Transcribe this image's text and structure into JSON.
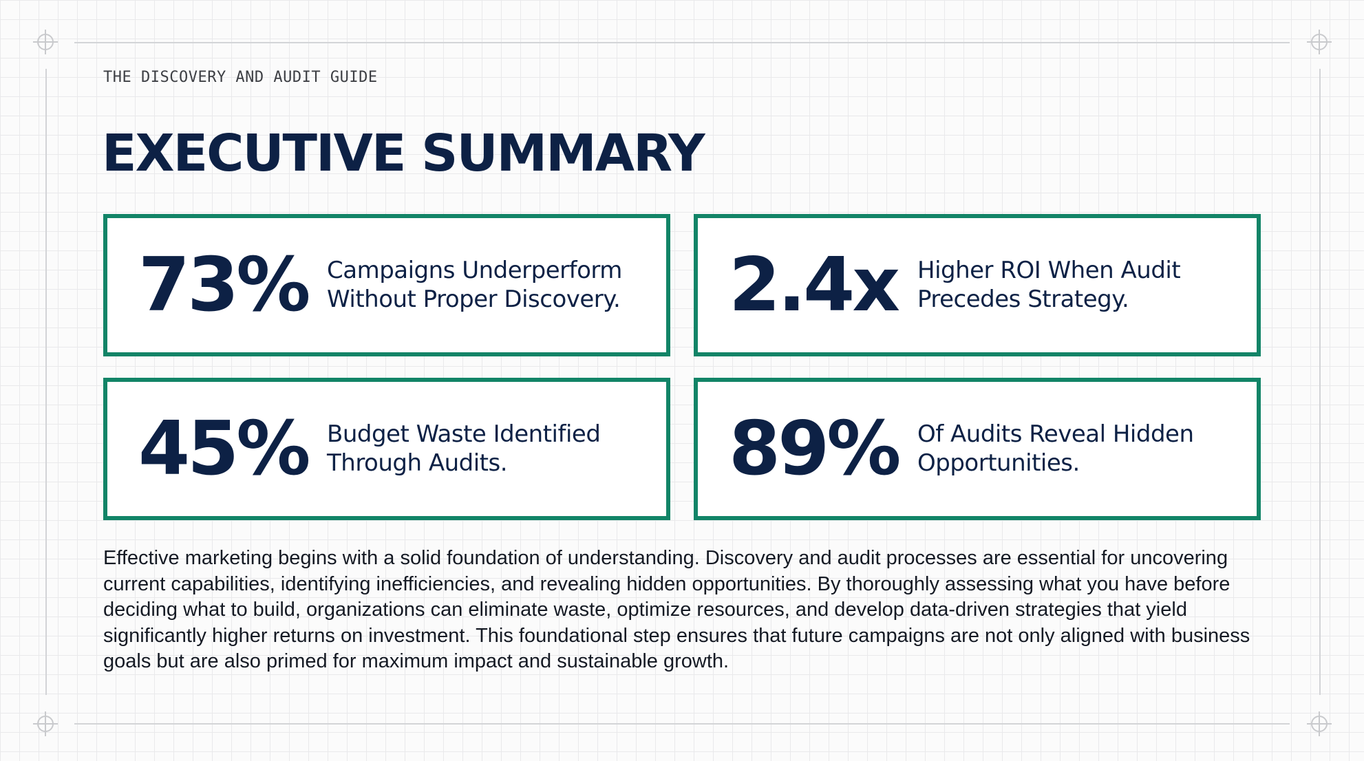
{
  "header": {
    "eyebrow": "THE DISCOVERY AND AUDIT GUIDE",
    "title": "EXECUTIVE SUMMARY"
  },
  "stats": [
    {
      "value": "73%",
      "line1": "Campaigns Underperform",
      "line2": "Without Proper Discovery."
    },
    {
      "value": "2.4x",
      "line1": "Higher ROI When Audit",
      "line2": "Precedes Strategy."
    },
    {
      "value": "45%",
      "line1": "Budget Waste Identified",
      "line2": "Through Audits."
    },
    {
      "value": "89%",
      "line1": "Of Audits Reveal Hidden",
      "line2": "Opportunities."
    }
  ],
  "summary": "Effective marketing begins with a solid foundation of understanding. Discovery and audit processes are essential for uncovering current capabilities, identifying inefficiencies, and revealing hidden opportunities. By thoroughly assessing what you have before deciding what to build, organizations can eliminate waste, optimize resources, and develop data-driven strategies that yield significantly higher returns on investment. This foundational step ensures that future campaigns are not only aligned with business goals but are also primed for maximum impact and sustainable growth.",
  "colors": {
    "navy": "#0d2145",
    "accent_green": "#128467",
    "grid": "#e9e9eb"
  },
  "icons": {
    "corner_marks": "crosshair-icon"
  }
}
